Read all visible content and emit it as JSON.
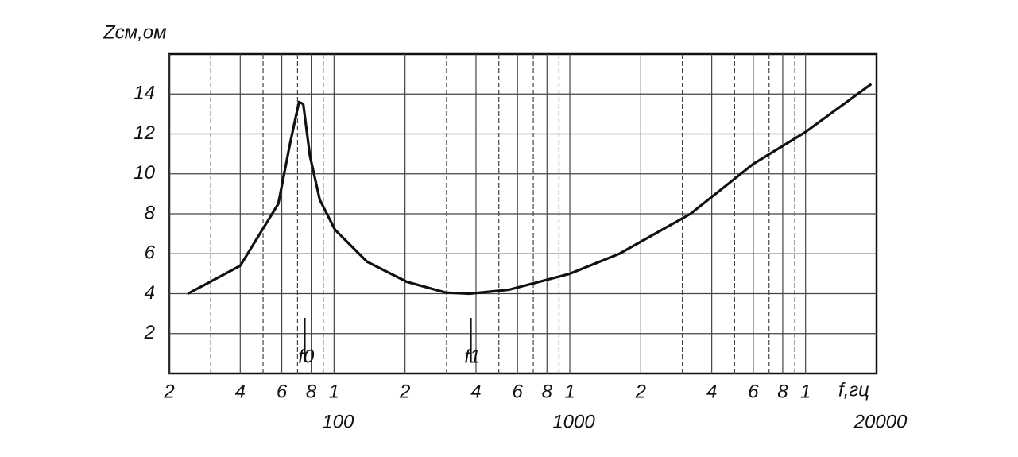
{
  "chart_data": {
    "type": "line",
    "y_label": "Zсм,ом",
    "x_label": "f,гц",
    "x_scale": "log",
    "xlim": [
      20,
      20000
    ],
    "ylim": [
      0,
      16
    ],
    "xticks": [
      {
        "value": 20,
        "label": "2"
      },
      {
        "value": 40,
        "label": "4"
      },
      {
        "value": 60,
        "label": "6"
      },
      {
        "value": 80,
        "label": "8"
      },
      {
        "value": 100,
        "label": "1"
      },
      {
        "value": 200,
        "label": "2"
      },
      {
        "value": 400,
        "label": "4"
      },
      {
        "value": 600,
        "label": "6"
      },
      {
        "value": 800,
        "label": "8"
      },
      {
        "value": 1000,
        "label": "1"
      },
      {
        "value": 2000,
        "label": "2"
      },
      {
        "value": 4000,
        "label": "4"
      },
      {
        "value": 6000,
        "label": "6"
      },
      {
        "value": 8000,
        "label": "8"
      },
      {
        "value": 10000,
        "label": "1"
      }
    ],
    "decade_labels": [
      {
        "value": 100,
        "label": "100"
      },
      {
        "value": 1000,
        "label": "1000"
      },
      {
        "value": 20000,
        "label": "20000"
      }
    ],
    "xgrid_minor": [
      30,
      50,
      70,
      90,
      300,
      500,
      700,
      900,
      3000,
      5000,
      7000,
      9000
    ],
    "yticks": [
      2,
      4,
      6,
      8,
      10,
      12,
      14
    ],
    "grid": true,
    "x": [
      24,
      40,
      58,
      65,
      71,
      74,
      79,
      87,
      101,
      138,
      203,
      298,
      376,
      552,
      1000,
      1620,
      3250,
      6000,
      10000,
      19000
    ],
    "series": [
      {
        "color": "#111111",
        "values": [
          4.0,
          5.4,
          8.5,
          11.5,
          13.6,
          13.5,
          10.9,
          8.7,
          7.2,
          5.6,
          4.6,
          4.05,
          4.0,
          4.2,
          5.0,
          6.0,
          8.0,
          10.5,
          12.1,
          14.5
        ]
      }
    ],
    "annotations": [
      {
        "text": "f0",
        "x": 75
      },
      {
        "text": "f1",
        "x": 380
      }
    ]
  }
}
